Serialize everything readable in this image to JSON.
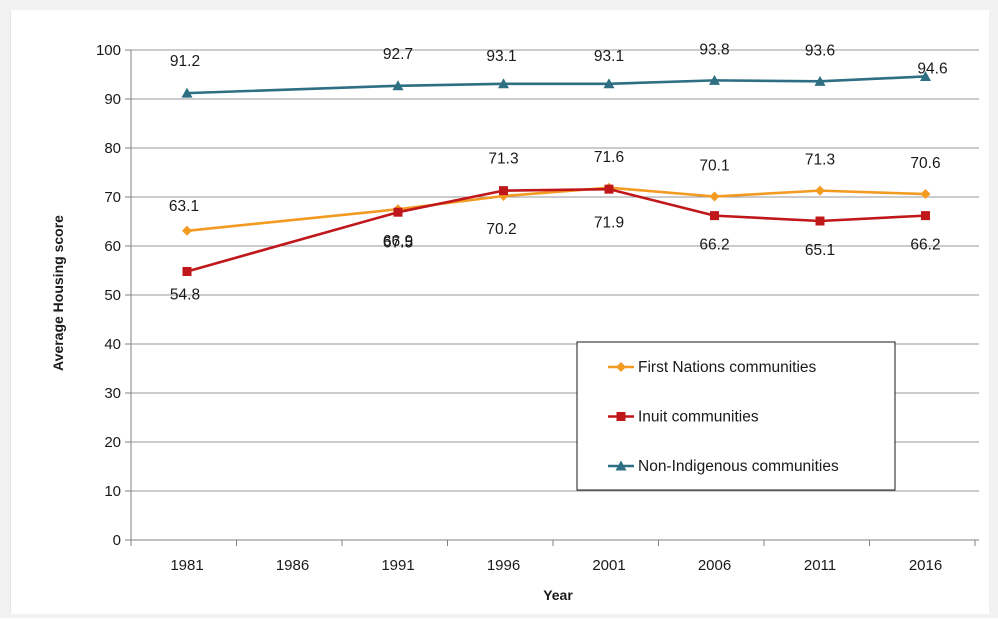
{
  "chart_data": {
    "type": "line",
    "categories": [
      "1981",
      "1986",
      "1991",
      "1996",
      "2001",
      "2006",
      "2011",
      "2016"
    ],
    "ylabel": "Average Housing score",
    "xlabel": "Year",
    "ylim": [
      0,
      100
    ],
    "yticks": [
      "0",
      "10",
      "20",
      "30",
      "40",
      "50",
      "60",
      "70",
      "80",
      "90",
      "100"
    ],
    "grid": true,
    "legend_position": "bottom-right",
    "series": [
      {
        "name": "First Nations communities",
        "color": "#F39A21",
        "marker": "diamond",
        "x": [
          "1981",
          "1991",
          "1996",
          "2001",
          "2006",
          "2011",
          "2016"
        ],
        "values": [
          63.1,
          67.5,
          70.2,
          71.9,
          70.1,
          71.3,
          70.6
        ],
        "labels": [
          "63.1",
          "67.5",
          "70.2",
          "71.9",
          "70.1",
          "71.3",
          "70.6"
        ]
      },
      {
        "name": "Inuit communities",
        "color": "#C0171B",
        "marker": "square",
        "x": [
          "1981",
          "1991",
          "1996",
          "2001",
          "2006",
          "2011",
          "2016"
        ],
        "values": [
          54.8,
          66.9,
          71.3,
          71.6,
          66.2,
          65.1,
          66.2
        ],
        "labels": [
          "54.8",
          "66.9",
          "71.3",
          "71.6",
          "66.2",
          "65.1",
          "66.2"
        ]
      },
      {
        "name": "Non-Indigenous communities",
        "color": "#2E6F83",
        "marker": "triangle",
        "x": [
          "1981",
          "1991",
          "1996",
          "2001",
          "2006",
          "2011",
          "2016"
        ],
        "values": [
          91.2,
          92.7,
          93.1,
          93.1,
          93.8,
          93.6,
          94.6
        ],
        "labels": [
          "91.2",
          "92.7",
          "93.1",
          "93.1",
          "93.8",
          "93.6",
          "94.6"
        ]
      }
    ]
  }
}
